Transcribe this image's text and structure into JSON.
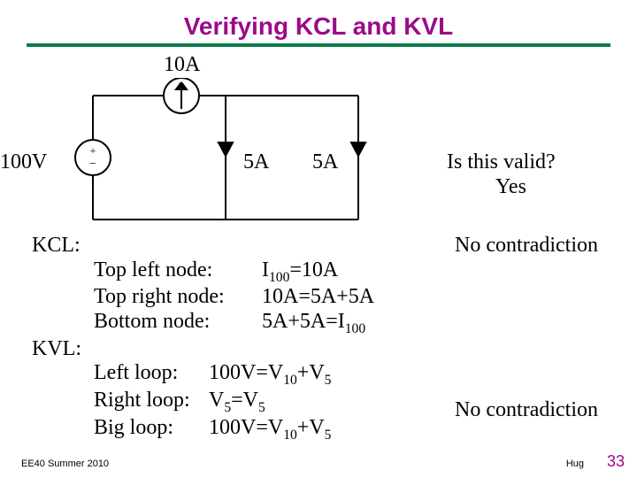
{
  "title": {
    "text": "Verifying KCL and KVL",
    "color": "#9a0a8a",
    "fontsize": 28,
    "rule_color": "#0a7a4a"
  },
  "circuit": {
    "stroke": "#000000",
    "stroke_width": 2,
    "labels": {
      "i_src": "10A",
      "v_src": "100V",
      "i_left": "5A",
      "i_right": "5A"
    },
    "label_fontsize": 24
  },
  "right": {
    "question": "Is this valid?",
    "answer": "Yes",
    "fontsize": 24
  },
  "analysis": {
    "fontsize": 24,
    "kcl_label": "KCL:",
    "kcl_note": "No contradiction",
    "kcl_rows": [
      {
        "name": "Top left node:",
        "eq_html": "I<sub>100</sub>=10A"
      },
      {
        "name": "Top right node:",
        "eq_html": "10A=5A+5A"
      },
      {
        "name": "Bottom node:",
        "eq_html": "5A+5A=I<sub>100</sub>"
      }
    ],
    "kvl_label": "KVL:",
    "kvl_note": "No contradiction",
    "kvl_rows": [
      {
        "name": "Left loop:",
        "eq_html": "100V=V<sub>10</sub>+V<sub>5</sub>"
      },
      {
        "name": "Right loop:",
        "eq_html": "V<sub>5</sub>=V<sub>5</sub>"
      },
      {
        "name": "Big loop:",
        "eq_html": "100V=V<sub>10</sub>+V<sub>5</sub>"
      }
    ]
  },
  "footer": {
    "course": "EE40 Summer 2010",
    "author": "Hug",
    "page": "33",
    "course_fontsize": 11,
    "author_fontsize": 11,
    "page_fontsize": 18,
    "page_color": "#9a0a8a"
  }
}
